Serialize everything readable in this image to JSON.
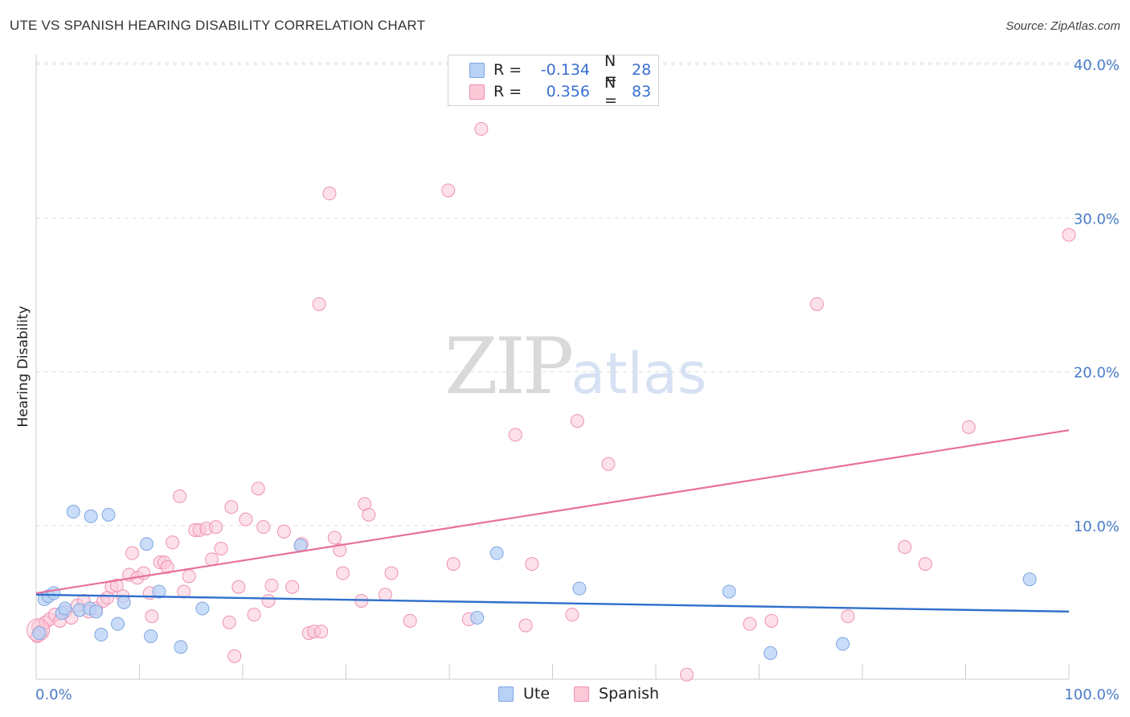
{
  "header": {
    "title": "UTE VS SPANISH HEARING DISABILITY CORRELATION CHART",
    "source": "Source: ZipAtlas.com"
  },
  "watermark": {
    "zip": "ZIP",
    "atlas": "atlas"
  },
  "legend": {
    "rows": [
      {
        "r_label": "R =",
        "r_value": "-0.134",
        "n_label": "N =",
        "n_value": "28",
        "color": "#b8d2f5",
        "border": "#7ea6e0"
      },
      {
        "r_label": "R =",
        "r_value": "0.356",
        "n_label": "N =",
        "n_value": "83",
        "color": "#fbc8d8",
        "border": "#ee90b0"
      }
    ]
  },
  "bottom_legend": {
    "items": [
      {
        "label": "Ute"
      },
      {
        "label": "Spanish"
      }
    ]
  },
  "chart_data": {
    "type": "scatter",
    "title": "UTE VS SPANISH HEARING DISABILITY CORRELATION CHART",
    "xlabel": "",
    "ylabel": "Hearing Disability",
    "xlim": [
      0,
      100
    ],
    "ylim": [
      0,
      40
    ],
    "x_tick_labels": [
      "0.0%",
      "100.0%"
    ],
    "y_ticks": [
      10,
      20,
      30,
      40
    ],
    "y_tick_labels": [
      "10.0%",
      "20.0%",
      "30.0%",
      "40.0%"
    ],
    "grid": true,
    "legend_position": "top-center",
    "colors": {
      "Ute": "#b8d2f5",
      "Ute_line": "#2f6fcb",
      "Spanish": "#fbc8d8",
      "Spanish_line": "#e8709a"
    },
    "series": [
      {
        "name": "Ute",
        "trend": {
          "x": [
            0,
            100
          ],
          "y": [
            5.5,
            4.4
          ]
        },
        "points": [
          [
            0.3,
            3.0
          ],
          [
            0.8,
            5.2
          ],
          [
            1.2,
            5.4
          ],
          [
            1.7,
            5.6
          ],
          [
            2.5,
            4.3
          ],
          [
            2.8,
            4.6
          ],
          [
            3.6,
            10.9
          ],
          [
            4.2,
            4.5
          ],
          [
            5.2,
            4.6
          ],
          [
            5.3,
            10.6
          ],
          [
            5.8,
            4.4
          ],
          [
            6.3,
            2.9
          ],
          [
            7.0,
            10.7
          ],
          [
            7.9,
            3.6
          ],
          [
            8.5,
            5.0
          ],
          [
            10.7,
            8.8
          ],
          [
            11.1,
            2.8
          ],
          [
            11.9,
            5.7
          ],
          [
            14.0,
            2.1
          ],
          [
            16.1,
            4.6
          ],
          [
            25.6,
            8.7
          ],
          [
            42.7,
            4.0
          ],
          [
            44.6,
            8.2
          ],
          [
            52.6,
            5.9
          ],
          [
            67.1,
            5.7
          ],
          [
            71.1,
            1.7
          ],
          [
            78.1,
            2.3
          ],
          [
            96.2,
            6.5
          ]
        ]
      },
      {
        "name": "Spanish",
        "trend": {
          "x": [
            0,
            100
          ],
          "y": [
            5.6,
            16.2
          ]
        },
        "points": [
          [
            0.2,
            3.4
          ],
          [
            0.5,
            3.1
          ],
          [
            0.9,
            3.7
          ],
          [
            1.3,
            3.9
          ],
          [
            1.8,
            4.2
          ],
          [
            2.3,
            3.8
          ],
          [
            2.8,
            4.4
          ],
          [
            3.4,
            4.0
          ],
          [
            4.0,
            4.8
          ],
          [
            4.6,
            5.1
          ],
          [
            5.1,
            4.4
          ],
          [
            5.8,
            4.6
          ],
          [
            6.5,
            5.1
          ],
          [
            6.9,
            5.3
          ],
          [
            7.3,
            6.0
          ],
          [
            7.8,
            6.1
          ],
          [
            8.4,
            5.4
          ],
          [
            9.0,
            6.8
          ],
          [
            9.3,
            8.2
          ],
          [
            9.8,
            6.6
          ],
          [
            10.4,
            6.9
          ],
          [
            11.0,
            5.6
          ],
          [
            11.2,
            4.1
          ],
          [
            12.0,
            7.6
          ],
          [
            12.4,
            7.6
          ],
          [
            12.7,
            7.3
          ],
          [
            13.2,
            8.9
          ],
          [
            13.9,
            11.9
          ],
          [
            14.3,
            5.7
          ],
          [
            14.8,
            6.7
          ],
          [
            15.4,
            9.7
          ],
          [
            15.8,
            9.7
          ],
          [
            16.5,
            9.8
          ],
          [
            17.0,
            7.8
          ],
          [
            17.4,
            9.9
          ],
          [
            17.9,
            8.5
          ],
          [
            18.7,
            3.7
          ],
          [
            18.9,
            11.2
          ],
          [
            19.2,
            1.5
          ],
          [
            19.6,
            6.0
          ],
          [
            20.3,
            10.4
          ],
          [
            21.1,
            4.2
          ],
          [
            21.5,
            12.4
          ],
          [
            22.0,
            9.9
          ],
          [
            22.5,
            5.1
          ],
          [
            22.8,
            6.1
          ],
          [
            24.0,
            9.6
          ],
          [
            24.8,
            6.0
          ],
          [
            25.7,
            8.8
          ],
          [
            26.4,
            3.0
          ],
          [
            26.9,
            3.1
          ],
          [
            27.4,
            24.4
          ],
          [
            27.6,
            3.1
          ],
          [
            28.4,
            31.6
          ],
          [
            28.9,
            9.2
          ],
          [
            29.4,
            8.4
          ],
          [
            29.7,
            6.9
          ],
          [
            31.5,
            5.1
          ],
          [
            31.8,
            11.4
          ],
          [
            32.2,
            10.7
          ],
          [
            33.8,
            5.5
          ],
          [
            34.4,
            6.9
          ],
          [
            36.2,
            3.8
          ],
          [
            39.9,
            31.8
          ],
          [
            40.4,
            7.5
          ],
          [
            41.9,
            3.9
          ],
          [
            43.1,
            35.8
          ],
          [
            46.4,
            15.9
          ],
          [
            47.4,
            3.5
          ],
          [
            48.0,
            7.5
          ],
          [
            51.9,
            4.2
          ],
          [
            52.4,
            16.8
          ],
          [
            55.4,
            14.0
          ],
          [
            69.1,
            3.6
          ],
          [
            71.2,
            3.8
          ],
          [
            75.6,
            24.4
          ],
          [
            78.6,
            4.1
          ],
          [
            84.1,
            8.6
          ],
          [
            86.1,
            7.5
          ],
          [
            90.3,
            16.4
          ],
          [
            100,
            28.9
          ],
          [
            63.0,
            0.3
          ],
          [
            0.1,
            2.8
          ]
        ]
      }
    ]
  }
}
